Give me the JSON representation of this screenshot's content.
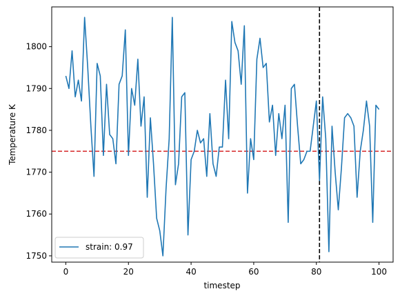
{
  "chart_data": {
    "type": "line",
    "title": "",
    "xlabel": "timestep",
    "ylabel": "Temperature K",
    "xlim": [
      -4.5,
      104.5
    ],
    "ylim": [
      1748.5,
      1809.5
    ],
    "x_ticks": [
      0,
      20,
      40,
      60,
      80,
      100
    ],
    "y_ticks": [
      1750,
      1760,
      1770,
      1780,
      1790,
      1800
    ],
    "grid": false,
    "legend_position": "lower-left",
    "series": [
      {
        "name": "strain: 0.97",
        "color": "#1f77b4",
        "x": [
          0,
          1,
          2,
          3,
          4,
          5,
          6,
          7,
          8,
          9,
          10,
          11,
          12,
          13,
          14,
          15,
          16,
          17,
          18,
          19,
          20,
          21,
          22,
          23,
          24,
          25,
          26,
          27,
          28,
          29,
          30,
          31,
          32,
          33,
          34,
          35,
          36,
          37,
          38,
          39,
          40,
          41,
          42,
          43,
          44,
          45,
          46,
          47,
          48,
          49,
          50,
          51,
          52,
          53,
          54,
          55,
          56,
          57,
          58,
          59,
          60,
          61,
          62,
          63,
          64,
          65,
          66,
          67,
          68,
          69,
          70,
          71,
          72,
          73,
          74,
          75,
          76,
          77,
          78,
          79,
          80,
          81,
          82,
          83,
          84,
          85,
          86,
          87,
          88,
          89,
          90,
          91,
          92,
          93,
          94,
          95,
          96,
          97,
          98,
          99,
          100
        ],
        "values": [
          1793,
          1790,
          1799,
          1788,
          1792,
          1787,
          1807,
          1795,
          1781,
          1769,
          1796,
          1793,
          1774,
          1791,
          1779,
          1778,
          1772,
          1791,
          1793,
          1804,
          1774,
          1790,
          1786,
          1797,
          1781,
          1788,
          1764,
          1783,
          1772,
          1759,
          1756,
          1750,
          1766,
          1778,
          1807,
          1767,
          1772,
          1788,
          1789,
          1755,
          1773,
          1775,
          1780,
          1777,
          1778,
          1769,
          1784,
          1772,
          1769,
          1776,
          1776,
          1792,
          1778,
          1806,
          1801,
          1799,
          1791,
          1805,
          1765,
          1778,
          1773,
          1797,
          1802,
          1795,
          1796,
          1782,
          1786,
          1774,
          1784,
          1778,
          1786,
          1758,
          1790,
          1791,
          1781,
          1772,
          1773,
          1775,
          1775,
          1781,
          1787,
          1768,
          1788,
          1778,
          1751,
          1781,
          1770,
          1761,
          1771,
          1783,
          1784,
          1783,
          1781,
          1764,
          1775,
          1780,
          1787,
          1781,
          1758,
          1786,
          1785
        ]
      }
    ],
    "reference_lines": [
      {
        "orientation": "horizontal",
        "value": 1775,
        "color": "#d62728",
        "style": "dashed"
      },
      {
        "orientation": "vertical",
        "value": 81,
        "color": "#000000",
        "style": "dashed"
      }
    ]
  }
}
